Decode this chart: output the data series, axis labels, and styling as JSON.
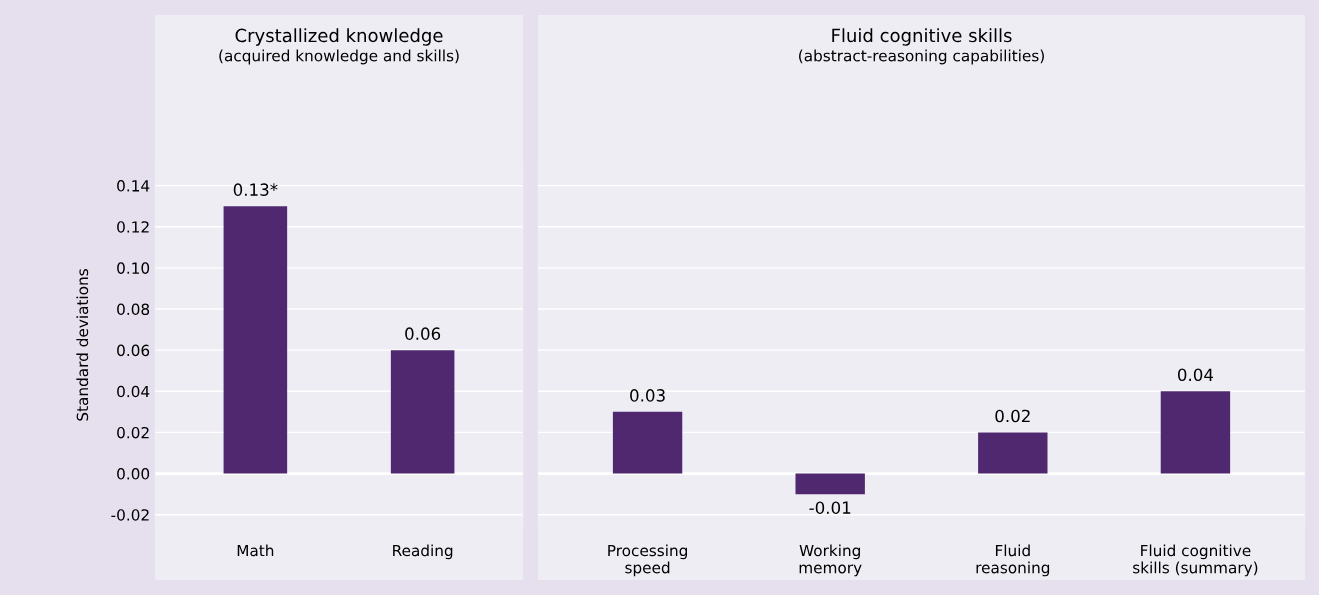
{
  "chart_data": [
    {
      "type": "bar",
      "title": "Crystallized knowledge",
      "subtitle": "(acquired knowledge and skills)",
      "ylabel": "Standard deviations",
      "categories": [
        "Math",
        "Reading"
      ],
      "values": [
        0.13,
        0.06
      ],
      "value_labels": [
        "0.13*",
        "0.06"
      ],
      "color": "#4f2870",
      "ylim": [
        -0.025,
        0.15
      ],
      "yticks": [
        {
          "value": -0.02,
          "label": "-0.02"
        },
        {
          "value": 0,
          "label": "0.00"
        },
        {
          "value": 0.02,
          "label": "0.02"
        },
        {
          "value": 0.04,
          "label": "0.04"
        },
        {
          "value": 0.06,
          "label": "0.06"
        },
        {
          "value": 0.08,
          "label": "0.08"
        },
        {
          "value": 0.1,
          "label": "0.10"
        },
        {
          "value": 0.12,
          "label": "0.12"
        },
        {
          "value": 0.14,
          "label": "0.14"
        }
      ],
      "grid": "y",
      "ref_lines": [
        {
          "axis": "y",
          "value": 0,
          "color": "#ffffff"
        }
      ]
    },
    {
      "type": "bar",
      "title": "Fluid cognitive skills",
      "subtitle": "(abstract-reasoning capabilities)",
      "categories": [
        "Processing\nspeed",
        "Working\nmemory",
        "Fluid\nreasoning",
        "Fluid cognitive\nskills (summary)"
      ],
      "values": [
        0.03,
        -0.01,
        0.02,
        0.04
      ],
      "data_labels": true,
      "color": "#4f2870",
      "ylim": [
        -0.025,
        0.15
      ],
      "yticks": [
        {
          "value": -0.02,
          "label": null
        },
        {
          "value": 0,
          "label": null
        },
        {
          "value": 0.02,
          "label": null
        },
        {
          "value": 0.04,
          "label": null
        },
        {
          "value": 0.06,
          "label": null
        },
        {
          "value": 0.08,
          "label": null
        },
        {
          "value": 0.1,
          "label": null
        },
        {
          "value": 0.12,
          "label": null
        },
        {
          "value": 0.14,
          "label": null
        }
      ],
      "grid": "y",
      "tick_labels": "x",
      "ref_lines": [
        {
          "axis": "y",
          "value": 0,
          "color": "#ffffff"
        }
      ]
    }
  ]
}
